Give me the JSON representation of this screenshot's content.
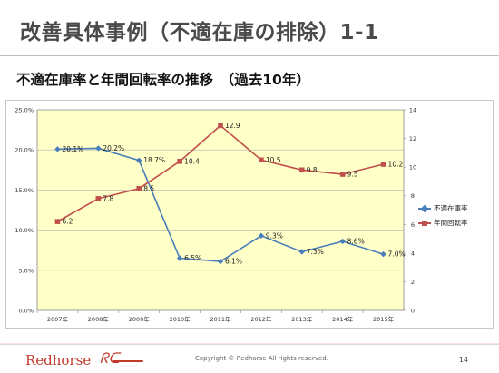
{
  "slide": {
    "title": "改善具体事例（不適在庫の排除）1-1",
    "subtitle": "不適在庫率と年間回転率の推移　（過去10年）"
  },
  "footer": {
    "brand": "Redhorse",
    "brand_mark": "ᖇᑕ",
    "copyright": "Copyright © Redhorse All rights reserved.",
    "page_number": "14"
  },
  "colors": {
    "plot_background": "#ffffc8",
    "series_rate": "#4a7ebb",
    "series_turnover": "#c0504d",
    "grid": "#b0b0b0"
  },
  "chart_data": {
    "type": "line",
    "categories": [
      "2007年",
      "2008年",
      "2009年",
      "2010年",
      "2011年",
      "2012年",
      "2013年",
      "2014年",
      "2015年"
    ],
    "series": [
      {
        "name": "不適在庫率",
        "axis": "left",
        "marker": "diamond",
        "values": [
          20.1,
          20.2,
          18.7,
          6.5,
          6.1,
          9.3,
          7.3,
          8.6,
          7.0
        ],
        "labels": [
          "20.1%",
          "20.2%",
          "18.7%",
          "6.5%",
          "6.1%",
          "9.3%",
          "7.3%",
          "8.6%",
          "7.0%"
        ]
      },
      {
        "name": "年間回転率",
        "axis": "right",
        "marker": "square",
        "values": [
          6.2,
          7.8,
          8.5,
          10.4,
          12.9,
          10.5,
          9.8,
          9.5,
          10.2
        ],
        "labels": [
          "6.2",
          "7.8",
          "8.5",
          "10.4",
          "12.9",
          "10.5",
          "9.8",
          "9.5",
          "10.2"
        ]
      }
    ],
    "y_left": {
      "min": 0,
      "max": 25,
      "step": 5,
      "tick_labels": [
        "0.0%",
        "5.0%",
        "10.0%",
        "15.0%",
        "20.0%",
        "25.0%"
      ]
    },
    "y_right": {
      "min": 0,
      "max": 14,
      "step": 2,
      "tick_labels": [
        "0",
        "2",
        "4",
        "6",
        "8",
        "10",
        "12",
        "14"
      ]
    },
    "grid": true,
    "legend_position": "right"
  }
}
